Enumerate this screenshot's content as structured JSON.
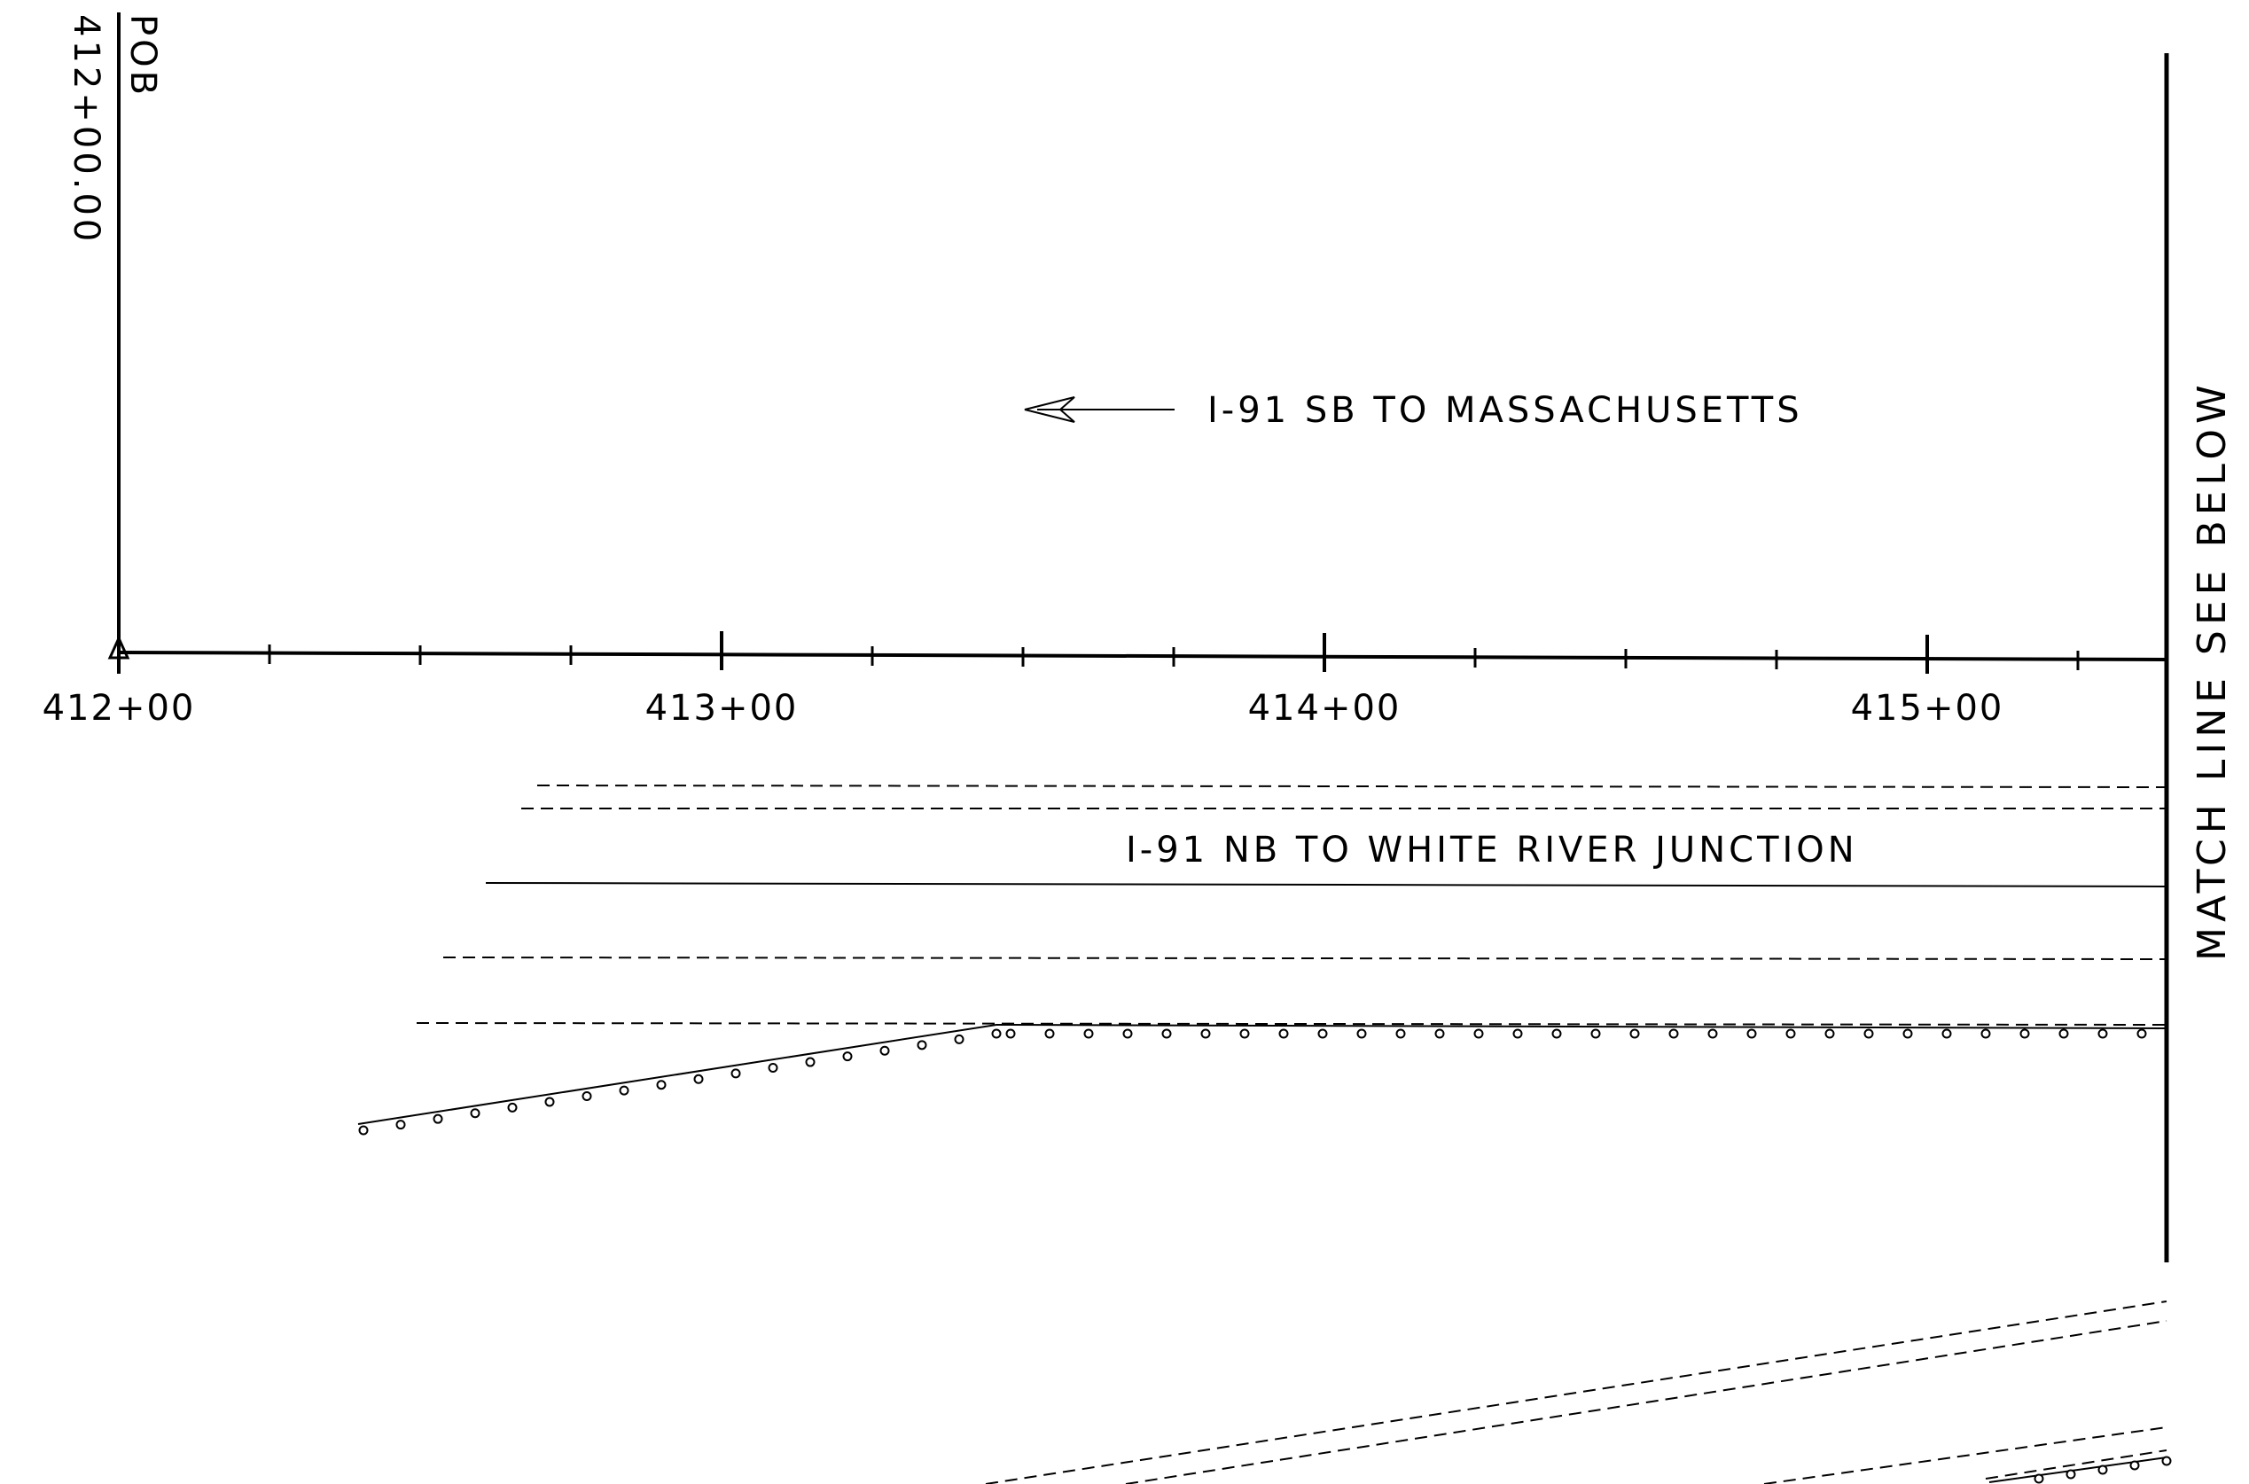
{
  "pob": {
    "label": "POB",
    "station": "412+00.00"
  },
  "baseline": {
    "stations": [
      "412+00",
      "413+00",
      "414+00",
      "415+00"
    ]
  },
  "southbound": {
    "label": "I-91 SB TO MASSACHUSETTS",
    "direction_icon": "arrow-left-icon"
  },
  "northbound": {
    "label": "I-91 NB TO WHITE RIVER JUNCTION"
  },
  "match_line": {
    "label": "MATCH LINE SEE BELOW"
  },
  "colors": {
    "ink": "#000000",
    "paper": "#ffffff"
  }
}
